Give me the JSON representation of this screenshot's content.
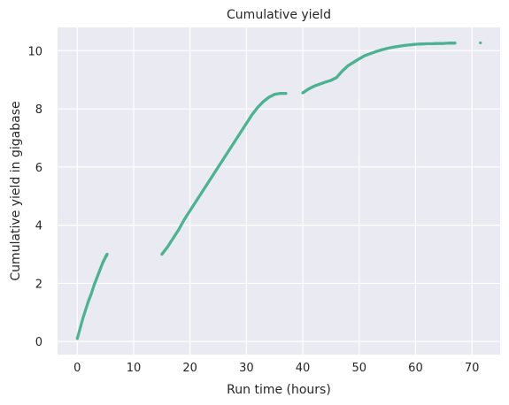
{
  "chart_data": {
    "type": "scatter",
    "title": "Cumulative yield",
    "xlabel": "Run time (hours)",
    "ylabel": "Cumulative yield in gigabase",
    "xlim": [
      -3.5,
      75
    ],
    "ylim": [
      -0.45,
      10.8
    ],
    "xticks": [
      0,
      10,
      20,
      30,
      40,
      50,
      60,
      70
    ],
    "yticks": [
      0,
      2,
      4,
      6,
      8,
      10
    ],
    "grid": true,
    "colors": {
      "background": "#EAEAF2",
      "grid": "#FFFFFF",
      "series": "#4CB391"
    },
    "segments": [
      {
        "x": [
          0,
          0.5,
          1,
          1.5,
          2,
          2.5,
          3,
          3.5,
          4,
          4.5,
          5,
          5.3
        ],
        "y": [
          0.1,
          0.45,
          0.8,
          1.1,
          1.4,
          1.65,
          1.95,
          2.2,
          2.45,
          2.7,
          2.9,
          3.0
        ]
      },
      {
        "x": [
          15,
          16,
          17,
          18,
          19,
          20,
          21,
          22,
          23,
          24,
          25,
          26,
          27,
          28,
          29,
          30,
          31,
          32,
          33,
          34,
          35,
          36,
          37
        ],
        "y": [
          3.0,
          3.25,
          3.55,
          3.85,
          4.2,
          4.5,
          4.8,
          5.1,
          5.4,
          5.7,
          6.0,
          6.3,
          6.6,
          6.9,
          7.2,
          7.5,
          7.8,
          8.05,
          8.25,
          8.4,
          8.5,
          8.53,
          8.53
        ]
      },
      {
        "x": [
          40,
          41,
          42,
          43,
          44,
          45,
          46,
          47,
          48,
          49,
          50,
          51,
          52,
          53,
          54,
          55,
          56,
          57,
          58,
          59,
          60,
          61,
          62,
          63,
          64,
          65,
          66,
          67
        ],
        "y": [
          8.55,
          8.68,
          8.78,
          8.85,
          8.92,
          8.98,
          9.08,
          9.3,
          9.48,
          9.6,
          9.72,
          9.83,
          9.9,
          9.97,
          10.03,
          10.08,
          10.12,
          10.15,
          10.18,
          10.2,
          10.22,
          10.23,
          10.24,
          10.24,
          10.25,
          10.25,
          10.26,
          10.26
        ]
      },
      {
        "x": [
          71.5
        ],
        "y": [
          10.27
        ]
      }
    ]
  }
}
